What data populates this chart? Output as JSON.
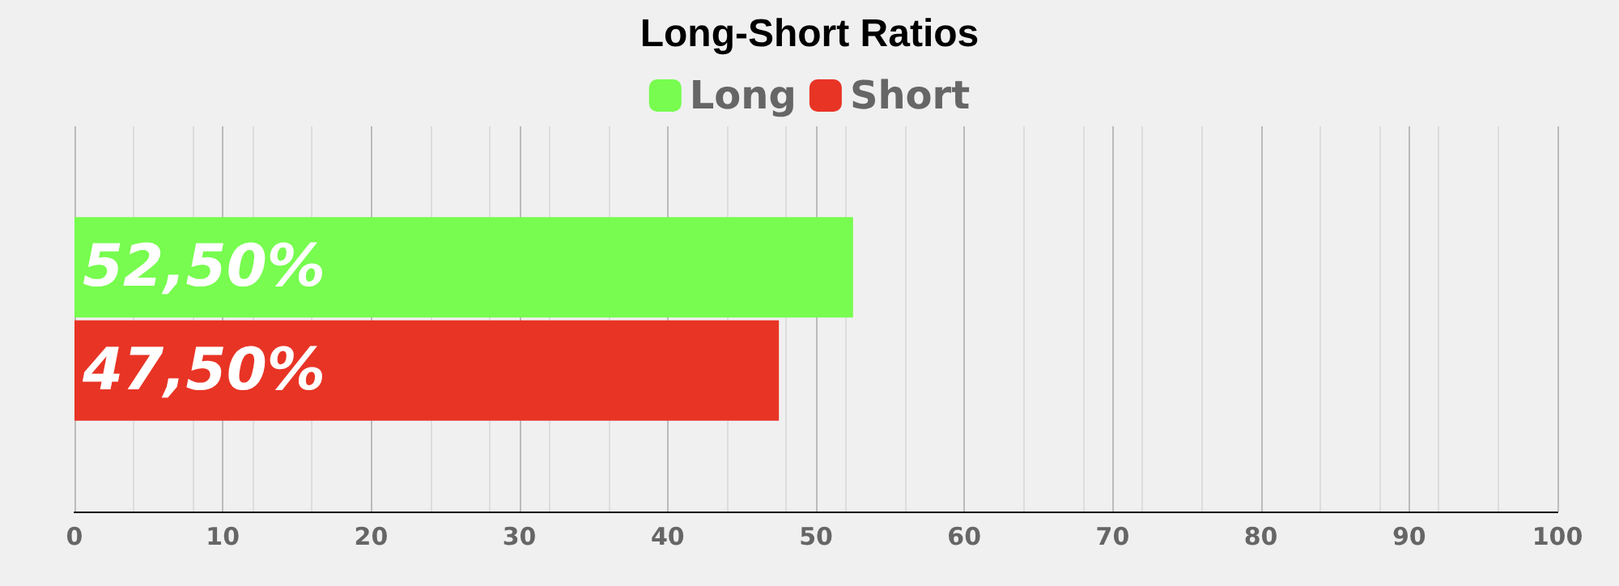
{
  "chart_data": {
    "type": "bar",
    "orientation": "horizontal",
    "title": "Long-Short Ratios",
    "categories": [
      null
    ],
    "series": [
      {
        "name": "Long",
        "color": "#77fc4f",
        "values": [
          52.5
        ],
        "value_labels": [
          "52,50%"
        ]
      },
      {
        "name": "Short",
        "color": "#e83425",
        "values": [
          47.5
        ],
        "value_labels": [
          "47,50%"
        ]
      }
    ],
    "xlim": [
      0,
      100
    ],
    "xticks": [
      0,
      10,
      20,
      30,
      40,
      50,
      60,
      70,
      80,
      90,
      100
    ],
    "grid": "x",
    "legend": "top"
  }
}
